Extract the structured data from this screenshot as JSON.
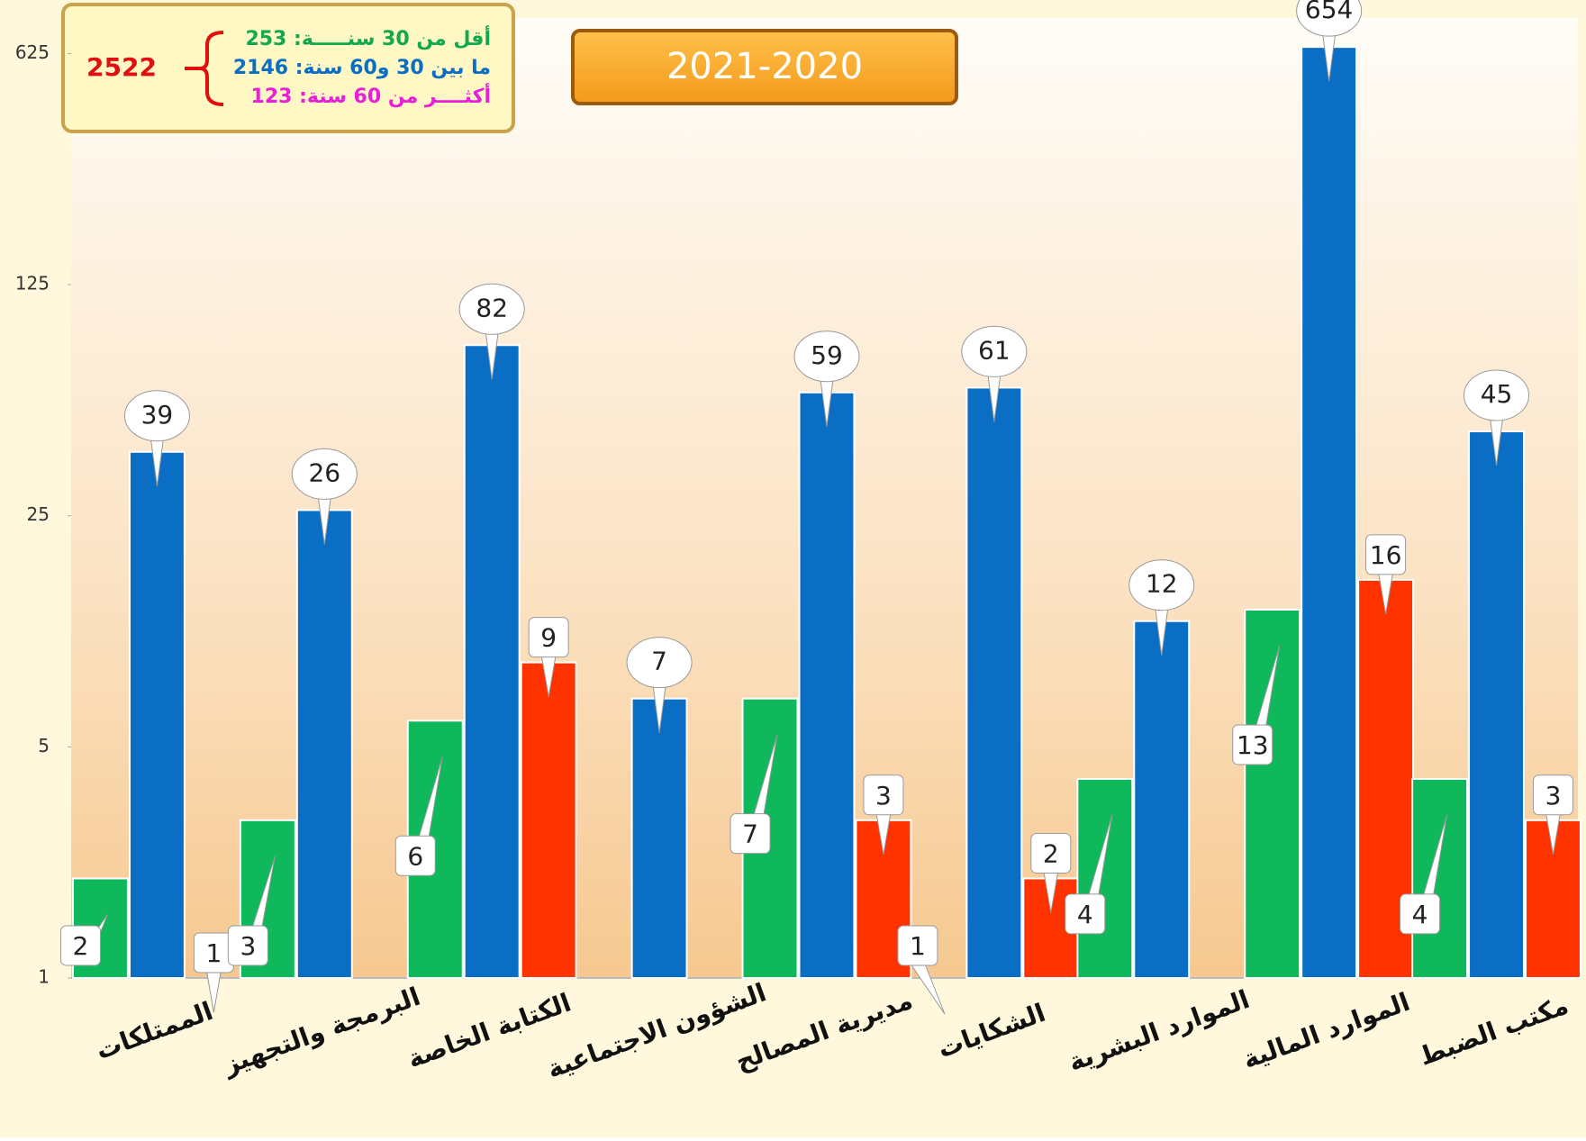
{
  "chart_data": {
    "type": "bar",
    "title": "2021-2020",
    "categories": [
      "الممتلكات",
      "البرمجة والتجهيز",
      "الكتابة الخاصة",
      "الشؤون الاجتماعية",
      "مديرية المصالح",
      "الشكايات",
      "الموارد البشرية",
      "الموارد المالية",
      "مكتب الضبط"
    ],
    "series": [
      {
        "color": "#0fb85a",
        "values": [
          2,
          3,
          6,
          null,
          7,
          1,
          4,
          13,
          4
        ]
      },
      {
        "color": "#0a6fc4",
        "values": [
          39,
          26,
          82,
          7,
          59,
          61,
          12,
          654,
          45
        ]
      },
      {
        "color": "#ff3300",
        "values": [
          1,
          null,
          9,
          null,
          3,
          2,
          null,
          16,
          3
        ]
      }
    ],
    "log_scale": true,
    "ylim": [
      1,
      800
    ],
    "yticks": [
      1,
      5,
      25,
      125,
      625
    ],
    "summary": {
      "total": "2522",
      "lines": [
        {
          "text": "أقل من 30 سنـــــة: 253",
          "color": "#12a84e"
        },
        {
          "text": "ما بين 30 و60 سنة: 2146",
          "color": "#0a6fc4"
        },
        {
          "text": "أكثــــر من 60 سنة: 123",
          "color": "#e81ed8"
        }
      ]
    }
  }
}
